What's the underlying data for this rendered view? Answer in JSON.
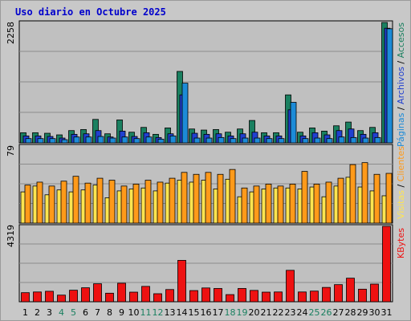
{
  "title": "Uso diario en Octubre 2025",
  "colors": {
    "background": "#c0c0c0",
    "accesos": "#1a8060",
    "paginas": "#1c8bd8",
    "archivos": "#2040d0",
    "visitas": "#ffe550",
    "clientes": "#ff9a1a",
    "kbytes": "#ee1111",
    "weekend_label": "#1a8060",
    "weekday_label": "#000000"
  },
  "chart_data": [
    {
      "type": "bar",
      "name": "panel-accesos",
      "categories": [
        "1",
        "2",
        "3",
        "4",
        "5",
        "6",
        "7",
        "8",
        "9",
        "10",
        "11",
        "12",
        "13",
        "14",
        "15",
        "16",
        "17",
        "18",
        "19",
        "20",
        "21",
        "22",
        "23",
        "24",
        "25",
        "26",
        "27",
        "28",
        "29",
        "30",
        "31"
      ],
      "weekend": [
        "4",
        "5",
        "11",
        "12",
        "18",
        "19",
        "25",
        "26"
      ],
      "ymax_label": "2258",
      "ylim": [
        0,
        2258
      ],
      "series": [
        {
          "name": "Accesos",
          "values": [
            190,
            190,
            180,
            150,
            230,
            250,
            440,
            170,
            430,
            200,
            290,
            160,
            280,
            1340,
            260,
            240,
            250,
            200,
            260,
            420,
            190,
            190,
            900,
            200,
            280,
            220,
            320,
            390,
            230,
            290,
            2258
          ]
        },
        {
          "name": "Archivos",
          "values": [
            130,
            130,
            120,
            90,
            160,
            170,
            230,
            110,
            220,
            120,
            190,
            100,
            170,
            900,
            180,
            160,
            170,
            130,
            170,
            200,
            130,
            130,
            620,
            130,
            190,
            150,
            230,
            260,
            160,
            190,
            2150
          ]
        },
        {
          "name": "Páginas",
          "values": [
            80,
            80,
            80,
            60,
            110,
            110,
            120,
            90,
            110,
            80,
            110,
            70,
            130,
            1120,
            90,
            90,
            100,
            80,
            90,
            90,
            80,
            80,
            760,
            80,
            90,
            80,
            110,
            100,
            90,
            100,
            2140
          ]
        }
      ],
      "legend": [
        "Páginas",
        "Archivos",
        "Accesos"
      ]
    },
    {
      "type": "bar",
      "name": "panel-visitas",
      "categories": [
        "1",
        "2",
        "3",
        "4",
        "5",
        "6",
        "7",
        "8",
        "9",
        "10",
        "11",
        "12",
        "13",
        "14",
        "15",
        "16",
        "17",
        "18",
        "19",
        "20",
        "21",
        "22",
        "23",
        "24",
        "25",
        "26",
        "27",
        "28",
        "29",
        "30",
        "31"
      ],
      "ymax_label": "79",
      "ylim": [
        0,
        79
      ],
      "series": [
        {
          "name": "Visitas",
          "values": [
            32,
            38,
            29,
            34,
            32,
            34,
            39,
            26,
            33,
            35,
            36,
            33,
            41,
            44,
            42,
            44,
            35,
            45,
            27,
            32,
            35,
            36,
            36,
            35,
            37,
            27,
            38,
            47,
            37,
            33,
            28
          ]
        },
        {
          "name": "Clientes",
          "values": [
            39,
            42,
            38,
            43,
            48,
            41,
            46,
            44,
            38,
            40,
            44,
            42,
            46,
            52,
            50,
            52,
            50,
            55,
            36,
            38,
            40,
            38,
            40,
            53,
            40,
            42,
            46,
            60,
            62,
            50,
            51
          ]
        }
      ],
      "legend": [
        "Visitas",
        "Clientes"
      ]
    },
    {
      "type": "bar",
      "name": "panel-kbytes",
      "categories": [
        "1",
        "2",
        "3",
        "4",
        "5",
        "6",
        "7",
        "8",
        "9",
        "10",
        "11",
        "12",
        "13",
        "14",
        "15",
        "16",
        "17",
        "18",
        "19",
        "20",
        "21",
        "22",
        "23",
        "24",
        "25",
        "26",
        "27",
        "28",
        "29",
        "30",
        "31"
      ],
      "ymax_label": "4319",
      "ylim": [
        0,
        4319
      ],
      "series": [
        {
          "name": "KBytes",
          "values": [
            520,
            560,
            600,
            380,
            660,
            800,
            1030,
            490,
            1060,
            550,
            880,
            460,
            700,
            2370,
            640,
            790,
            760,
            410,
            760,
            650,
            550,
            560,
            1800,
            560,
            610,
            820,
            980,
            1350,
            720,
            1010,
            4319
          ]
        }
      ],
      "legend": [
        "KBytes"
      ]
    }
  ]
}
